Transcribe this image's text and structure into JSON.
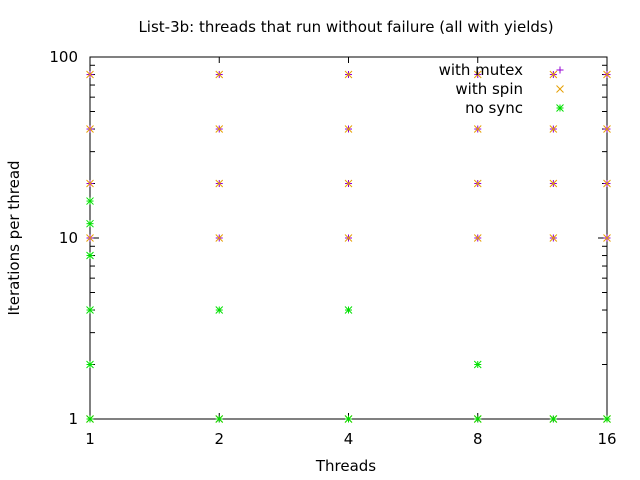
{
  "chart_data": {
    "type": "scatter",
    "title": "List-3b: threads that run without failure (all with yields)",
    "xlabel": "Threads",
    "ylabel": "Iterations per thread",
    "xscale": "log",
    "yscale": "log",
    "xlim": [
      1,
      16
    ],
    "ylim": [
      1,
      100
    ],
    "x_ticks": [
      {
        "value": 1,
        "label": "1"
      },
      {
        "value": 2,
        "label": "2"
      },
      {
        "value": 4,
        "label": "4"
      },
      {
        "value": 8,
        "label": "8"
      },
      {
        "value": 16,
        "label": "16"
      }
    ],
    "y_ticks": [
      {
        "value": 1,
        "label": "1"
      },
      {
        "value": 10,
        "label": "10"
      },
      {
        "value": 100,
        "label": "100"
      }
    ],
    "grid": false,
    "legend_position": "top-right",
    "series": [
      {
        "name": "with mutex",
        "marker": "+",
        "color": "#9400d3",
        "points": [
          [
            1,
            1
          ],
          [
            1,
            10
          ],
          [
            1,
            20
          ],
          [
            1,
            40
          ],
          [
            1,
            80
          ],
          [
            2,
            1
          ],
          [
            2,
            10
          ],
          [
            2,
            20
          ],
          [
            2,
            40
          ],
          [
            2,
            80
          ],
          [
            4,
            1
          ],
          [
            4,
            10
          ],
          [
            4,
            20
          ],
          [
            4,
            40
          ],
          [
            4,
            80
          ],
          [
            8,
            1
          ],
          [
            8,
            10
          ],
          [
            8,
            20
          ],
          [
            8,
            40
          ],
          [
            8,
            80
          ],
          [
            12,
            1
          ],
          [
            12,
            10
          ],
          [
            12,
            20
          ],
          [
            12,
            40
          ],
          [
            12,
            80
          ],
          [
            16,
            1
          ],
          [
            16,
            10
          ],
          [
            16,
            20
          ],
          [
            16,
            40
          ],
          [
            16,
            80
          ]
        ]
      },
      {
        "name": "with spin",
        "marker": "x",
        "color": "#e69f00",
        "points": [
          [
            1,
            1
          ],
          [
            1,
            10
          ],
          [
            1,
            20
          ],
          [
            1,
            40
          ],
          [
            1,
            80
          ],
          [
            2,
            1
          ],
          [
            2,
            10
          ],
          [
            2,
            20
          ],
          [
            2,
            40
          ],
          [
            2,
            80
          ],
          [
            4,
            1
          ],
          [
            4,
            10
          ],
          [
            4,
            20
          ],
          [
            4,
            40
          ],
          [
            4,
            80
          ],
          [
            8,
            1
          ],
          [
            8,
            10
          ],
          [
            8,
            20
          ],
          [
            8,
            40
          ],
          [
            8,
            80
          ],
          [
            12,
            1
          ],
          [
            12,
            10
          ],
          [
            12,
            20
          ],
          [
            12,
            40
          ],
          [
            12,
            80
          ],
          [
            16,
            1
          ],
          [
            16,
            10
          ],
          [
            16,
            20
          ],
          [
            16,
            40
          ],
          [
            16,
            80
          ]
        ]
      },
      {
        "name": "no sync",
        "marker": "*",
        "color": "#00e000",
        "points": [
          [
            1,
            1
          ],
          [
            1,
            2
          ],
          [
            1,
            4
          ],
          [
            1,
            8
          ],
          [
            1,
            12
          ],
          [
            1,
            16
          ],
          [
            2,
            1
          ],
          [
            2,
            4
          ],
          [
            4,
            1
          ],
          [
            4,
            4
          ],
          [
            8,
            1
          ],
          [
            8,
            2
          ],
          [
            12,
            1
          ],
          [
            16,
            1
          ]
        ]
      }
    ]
  }
}
